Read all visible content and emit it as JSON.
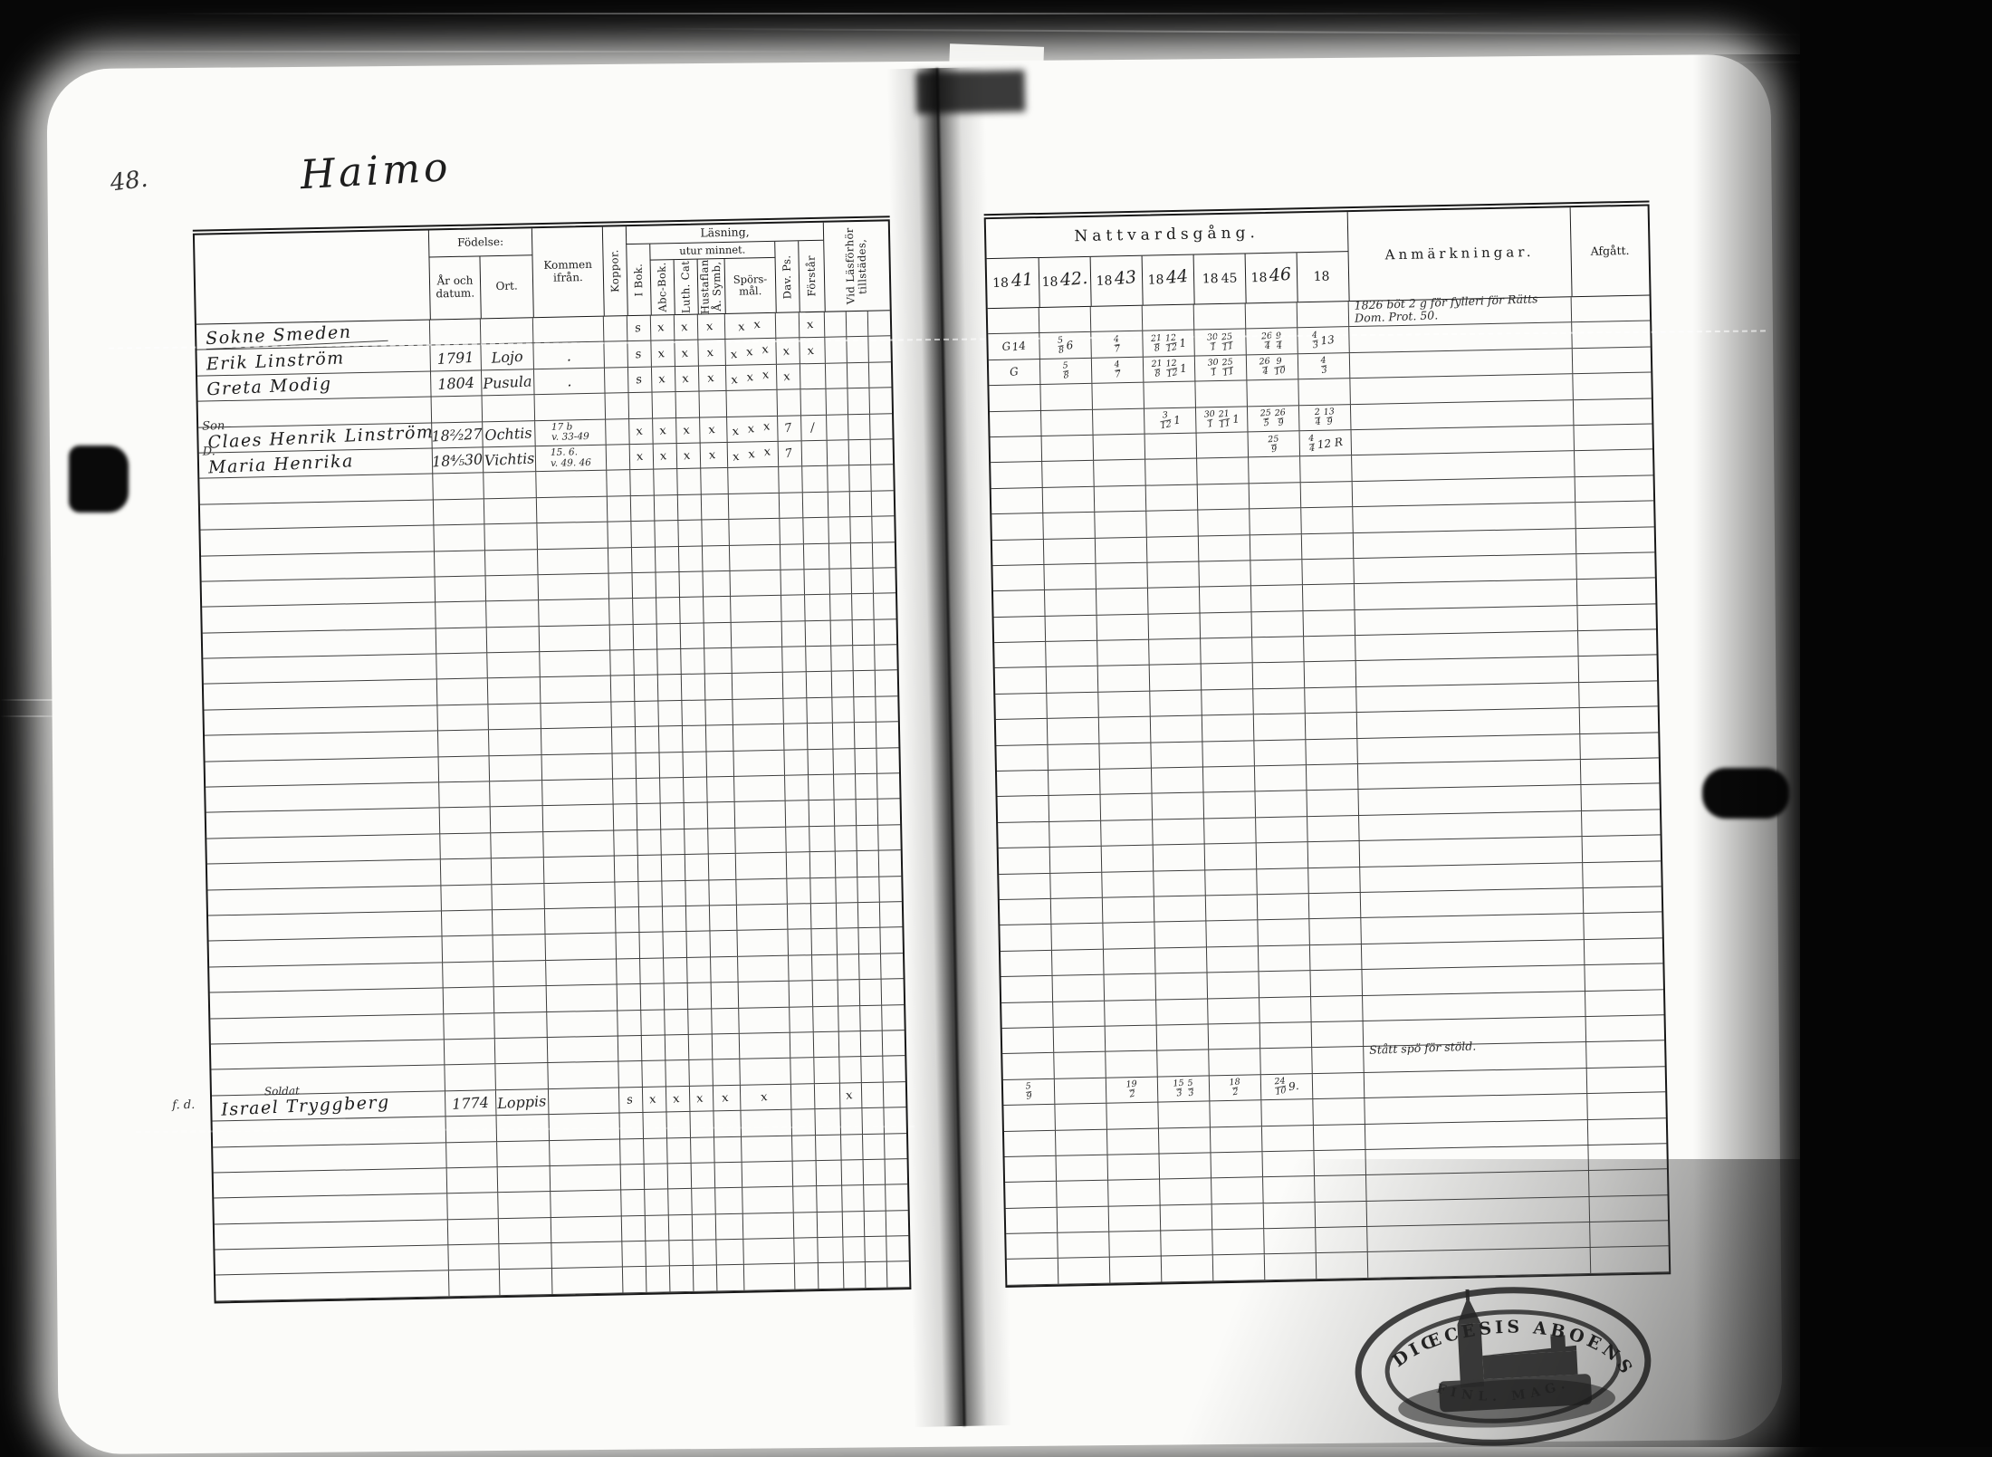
{
  "photo": {
    "folio": "48.",
    "title": "Haimo"
  },
  "left_table": {
    "header": {
      "fodelse": "Födelse:",
      "ar": "År och datum.",
      "ort": "Ort.",
      "kommen": "Kommen ifrån.",
      "koppor": "Koppor.",
      "lasning": "Läsning,",
      "utur": "utur minnet.",
      "ibok": "I Bok.",
      "abc": "Abc-Bok.",
      "luth": "Luth. Cat",
      "hust": "Hustaflan Å. Symb,",
      "spors": "Spörs-mål.",
      "dav": "Dav. Ps.",
      "forstar": "Förstår",
      "vid": "Vid Läsförhör tillstädes,"
    },
    "row_count": 38,
    "row_entries": {
      "0": {
        "name": "Sokne Smeden",
        "underline": true,
        "marks": {
          "ibok": "s",
          "abc": "x",
          "luth": "x",
          "hust": "x",
          "spors": "x x",
          "forstar": "x"
        }
      },
      "1": {
        "name": "Erik Linström",
        "birth": "1791",
        "ort": "Lojo",
        "kommen": ".",
        "marks": {
          "ibok": "s",
          "abc": "x",
          "luth": "x",
          "hust": "x",
          "spors": "x x x",
          "dav": "x",
          "forstar": "x"
        }
      },
      "2": {
        "name": "Greta Modig",
        "birth": "1804",
        "ort": "Pusula",
        "kommen": ".",
        "marks": {
          "ibok": "s",
          "abc": "x",
          "luth": "x",
          "hust": "x",
          "spors": "x x x",
          "dav": "x"
        }
      },
      "4": {
        "prefix": "Son",
        "name": "Claes Henrik Linström",
        "birth": "18²⁄₂27",
        "ort": "Ochtis",
        "kommen_lines": [
          "17 b",
          "v. 33-49"
        ],
        "marks": {
          "ibok": "x",
          "abc": "x",
          "luth": "x",
          "hust": "x",
          "spors": "x x x",
          "dav": "7",
          "forstar": "/"
        }
      },
      "5": {
        "prefix": "D.",
        "name": "Maria Henrika",
        "birth": "18⁴⁄₅30",
        "ort": "Vichtis",
        "kommen_lines": [
          "15. 6.",
          "v. 49. 46"
        ],
        "marks": {
          "ibok": "x",
          "abc": "x",
          "luth": "x",
          "hust": "x",
          "spors": "x x x",
          "dav": "7"
        }
      },
      "30": {
        "prefix": "f. d.",
        "name_top": "Soldat",
        "name": "Israel Tryggberg",
        "birth": "1774",
        "ort": "Loppis",
        "marks": {
          "koppor": "s",
          "ibok": "x",
          "abc": "x",
          "luth": "x",
          "hust": "x",
          "spors": "x",
          "vid": "x"
        }
      }
    }
  },
  "right_table": {
    "header": {
      "nattvard": "Nattvardsgång.",
      "year_prefix": "18",
      "years": [
        "41",
        "42.",
        "43",
        "44",
        "45",
        "46",
        ""
      ],
      "anmark": "Anmärkningar.",
      "afgatt": "Afgått."
    },
    "row_count": 38,
    "row_entries": {
      "0": {
        "anm_lines": [
          "1826 böt 2 g för fylleri för Rätts",
          "Dom. Prot. 50."
        ]
      },
      "1": {
        "cells": {
          "0": [
            "G",
            "14"
          ],
          "1": [
            "5/8",
            "6"
          ],
          "2": [
            "4/7"
          ],
          "3": [
            "21/8",
            "12/12",
            "1"
          ],
          "4": [
            "30/1",
            "25/11"
          ],
          "5": [
            "26/4",
            "9/4"
          ],
          "6": [
            "4/3",
            "13"
          ]
        }
      },
      "2": {
        "cells": {
          "0": [
            "G"
          ],
          "1": [
            "5/8"
          ],
          "2": [
            "4/7"
          ],
          "3": [
            "21/8",
            "12/12",
            "1"
          ],
          "4": [
            "30/1",
            "25/11"
          ],
          "5": [
            "26/4",
            "9/10"
          ],
          "6": [
            "4/3"
          ]
        }
      },
      "4": {
        "cells": {
          "3": [
            "3/12",
            "1"
          ],
          "4": [
            "30/1",
            "21/11",
            "1"
          ],
          "5": [
            "25/5",
            "26/9"
          ],
          "6": [
            "2/4",
            "13/9"
          ]
        }
      },
      "5": {
        "cells": {
          "5": [
            "25/9"
          ],
          "6": [
            "4/4",
            "12 R"
          ]
        }
      },
      "29": {
        "anm_lines": [
          "Stått spö för stöld."
        ]
      },
      "30": {
        "cells": {
          "0": [
            "5/9"
          ],
          "2": [
            "19/2"
          ],
          "3": [
            "15/3",
            "5/3"
          ],
          "4": [
            "18/2"
          ],
          "5": [
            "24/10",
            "9."
          ]
        }
      }
    }
  },
  "stamp": {
    "arc_top": "DIŒCESIS ABOENSIS",
    "arc_bottom": "FINL. MAG."
  }
}
